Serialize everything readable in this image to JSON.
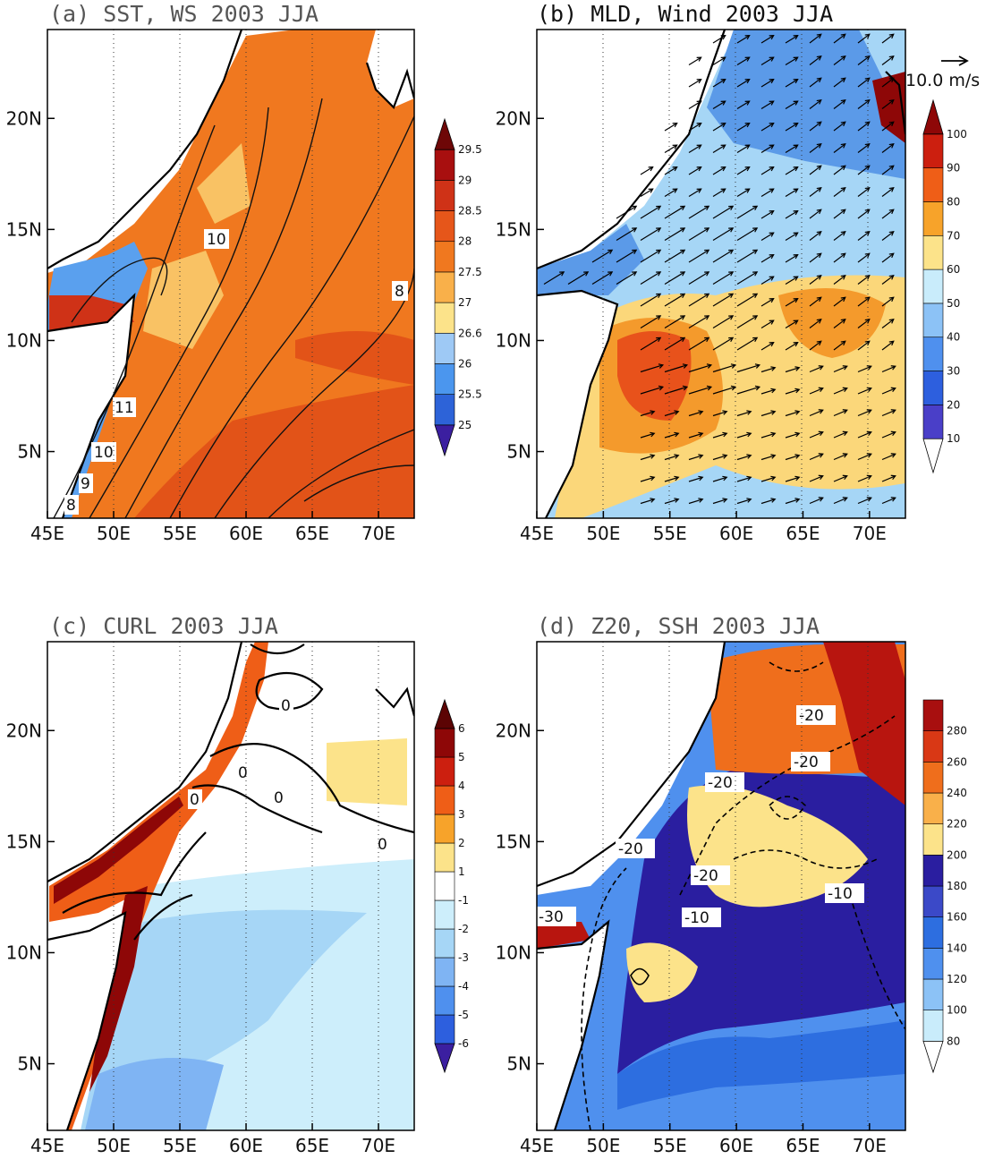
{
  "figure": {
    "panels": [
      {
        "id": "a",
        "title": "(a) SST, WS 2003 JJA",
        "x_ticks": [
          "45E",
          "50E",
          "55E",
          "60E",
          "65E",
          "70E"
        ],
        "y_ticks": [
          "5N",
          "10N",
          "15N",
          "20N"
        ],
        "colorbar": {
          "arrows": "both",
          "levels": [
            "25",
            "25.5",
            "26",
            "26.6",
            "27",
            "27.5",
            "28",
            "28.5",
            "29",
            "29.5"
          ],
          "colors": [
            "#3b1fa0",
            "#2d63d8",
            "#4b96ee",
            "#9ec9f5",
            "#fce38a",
            "#f9b04a",
            "#f0781f",
            "#e6561a",
            "#cf3217",
            "#a80f0f",
            "#6e0707"
          ]
        },
        "shading_colors": {
          "warm": "#f0781f",
          "hot": "#e25318",
          "cool": "#f9c264",
          "cold": "#5aa0ee"
        },
        "contour_labels": [
          "10",
          "8",
          "11",
          "10",
          "9",
          "8"
        ]
      },
      {
        "id": "b",
        "title": "(b) MLD, Wind 2003 JJA",
        "x_ticks": [
          "45E",
          "50E",
          "55E",
          "60E",
          "65E",
          "70E"
        ],
        "y_ticks": [
          "5N",
          "10N",
          "15N",
          "20N"
        ],
        "vector_reference": "10.0 m/s",
        "colorbar": {
          "arrows": "both",
          "levels": [
            "10",
            "20",
            "30",
            "40",
            "50",
            "60",
            "70",
            "80",
            "90",
            "100"
          ],
          "colors": [
            "#ffffff",
            "#4a3fc8",
            "#2d5fde",
            "#4f90ee",
            "#8cc2f6",
            "#c9ecfb",
            "#fce38a",
            "#f7a32a",
            "#ef5e17",
            "#cc1f0f",
            "#8e0707"
          ]
        },
        "shading_colors": {
          "shallow": "#5b9ae8",
          "light": "#a6d6f6",
          "mid": "#fbd77a",
          "deep": "#f49a2c",
          "deepest": "#e8521b"
        }
      },
      {
        "id": "c",
        "title": "(c) CURL 2003 JJA",
        "x_ticks": [
          "45E",
          "50E",
          "55E",
          "60E",
          "65E",
          "70E"
        ],
        "y_ticks": [
          "5N",
          "10N",
          "15N",
          "20N"
        ],
        "colorbar": {
          "arrows": "both",
          "levels": [
            "-6",
            "-5",
            "-4",
            "-3",
            "-2",
            "-1",
            "1",
            "2",
            "3",
            "4",
            "5",
            "6"
          ],
          "colors": [
            "#3b1fa0",
            "#2d5fde",
            "#4f90ee",
            "#7fb4f3",
            "#a6d6f6",
            "#cdeefb",
            "#ffffff",
            "#fce38a",
            "#f7a32a",
            "#ef5e17",
            "#cc1f0f",
            "#8e0707",
            "#5c0404"
          ]
        },
        "shading_colors": {
          "neg1": "#cdeefb",
          "neg2": "#a6d6f6",
          "neg3": "#7fb4f3",
          "pos1": "#fce38a",
          "pos3": "#ef5e17",
          "pos5": "#8e0707"
        },
        "contour_labels": [
          "0",
          "0",
          "0",
          "0",
          "0"
        ]
      },
      {
        "id": "d",
        "title": "(d) Z20, SSH 2003 JJA",
        "x_ticks": [
          "45E",
          "50E",
          "55E",
          "60E",
          "65E",
          "70E"
        ],
        "y_ticks": [
          "5N",
          "10N",
          "15N",
          "20N"
        ],
        "colorbar": {
          "arrows": "lower",
          "levels": [
            "80",
            "100",
            "120",
            "140",
            "160",
            "180",
            "200",
            "220",
            "240",
            "260",
            "280"
          ],
          "colors": [
            "#ffffff",
            "#c9ecfb",
            "#8cc2f6",
            "#4f90ee",
            "#2d6ee0",
            "#3b49c8",
            "#2a1ea0",
            "#fce38a",
            "#f9b04a",
            "#ef6e1c",
            "#d93815",
            "#a80f0f"
          ]
        },
        "shading_colors": {
          "shallow": "#4f90ee",
          "mid": "#2d6ee0",
          "purple": "#2a1ea0",
          "yellow": "#fce38a",
          "orange": "#ef6e1c",
          "red": "#b8150f"
        },
        "contour_labels": [
          "-20",
          "-20",
          "-20",
          "-20",
          "-20",
          "-10",
          "-10",
          "-30"
        ]
      }
    ]
  }
}
